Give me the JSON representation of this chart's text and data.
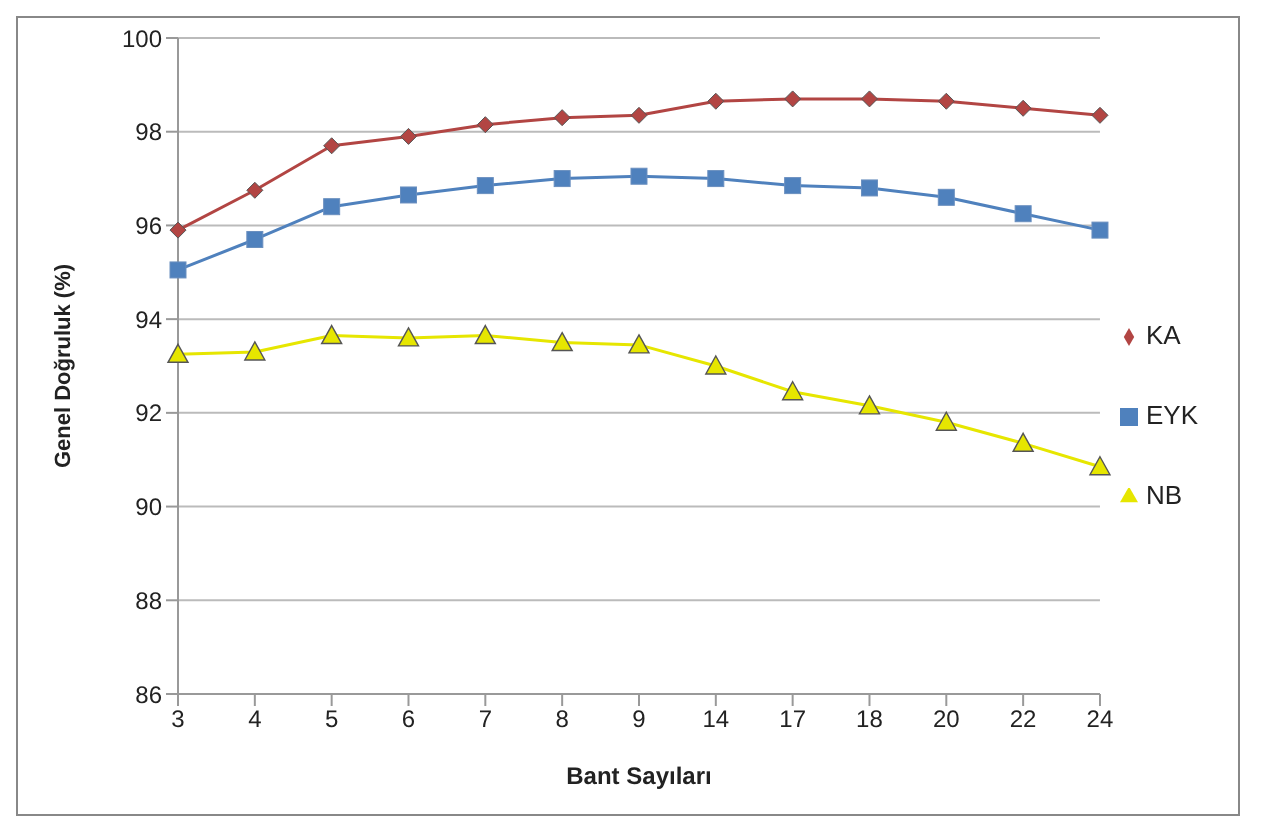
{
  "chart_data": {
    "type": "line",
    "xlabel": "Bant Sayıları",
    "ylabel": "Genel Doğruluk (%)",
    "categories": [
      "3",
      "4",
      "5",
      "6",
      "7",
      "8",
      "9",
      "14",
      "17",
      "18",
      "20",
      "22",
      "24"
    ],
    "series": [
      {
        "name": "KA",
        "color": "#b24543",
        "marker": "diamond",
        "values": [
          95.9,
          96.75,
          97.7,
          97.9,
          98.15,
          98.3,
          98.35,
          98.65,
          98.7,
          98.7,
          98.65,
          98.5,
          98.35
        ]
      },
      {
        "name": "EYK",
        "color": "#4f81bd",
        "marker": "square",
        "values": [
          95.05,
          95.7,
          96.4,
          96.65,
          96.85,
          97.0,
          97.05,
          97.0,
          96.85,
          96.8,
          96.6,
          96.25,
          95.9
        ]
      },
      {
        "name": "NB",
        "color": "#e6e600",
        "marker": "triangle",
        "values": [
          93.25,
          93.3,
          93.65,
          93.6,
          93.65,
          93.5,
          93.45,
          93.0,
          92.45,
          92.15,
          91.8,
          91.35,
          90.85
        ]
      }
    ],
    "ylim": [
      86,
      100
    ],
    "yticks": [
      86,
      88,
      90,
      92,
      94,
      96,
      98,
      100
    ],
    "grid": "y",
    "legend": "right"
  }
}
